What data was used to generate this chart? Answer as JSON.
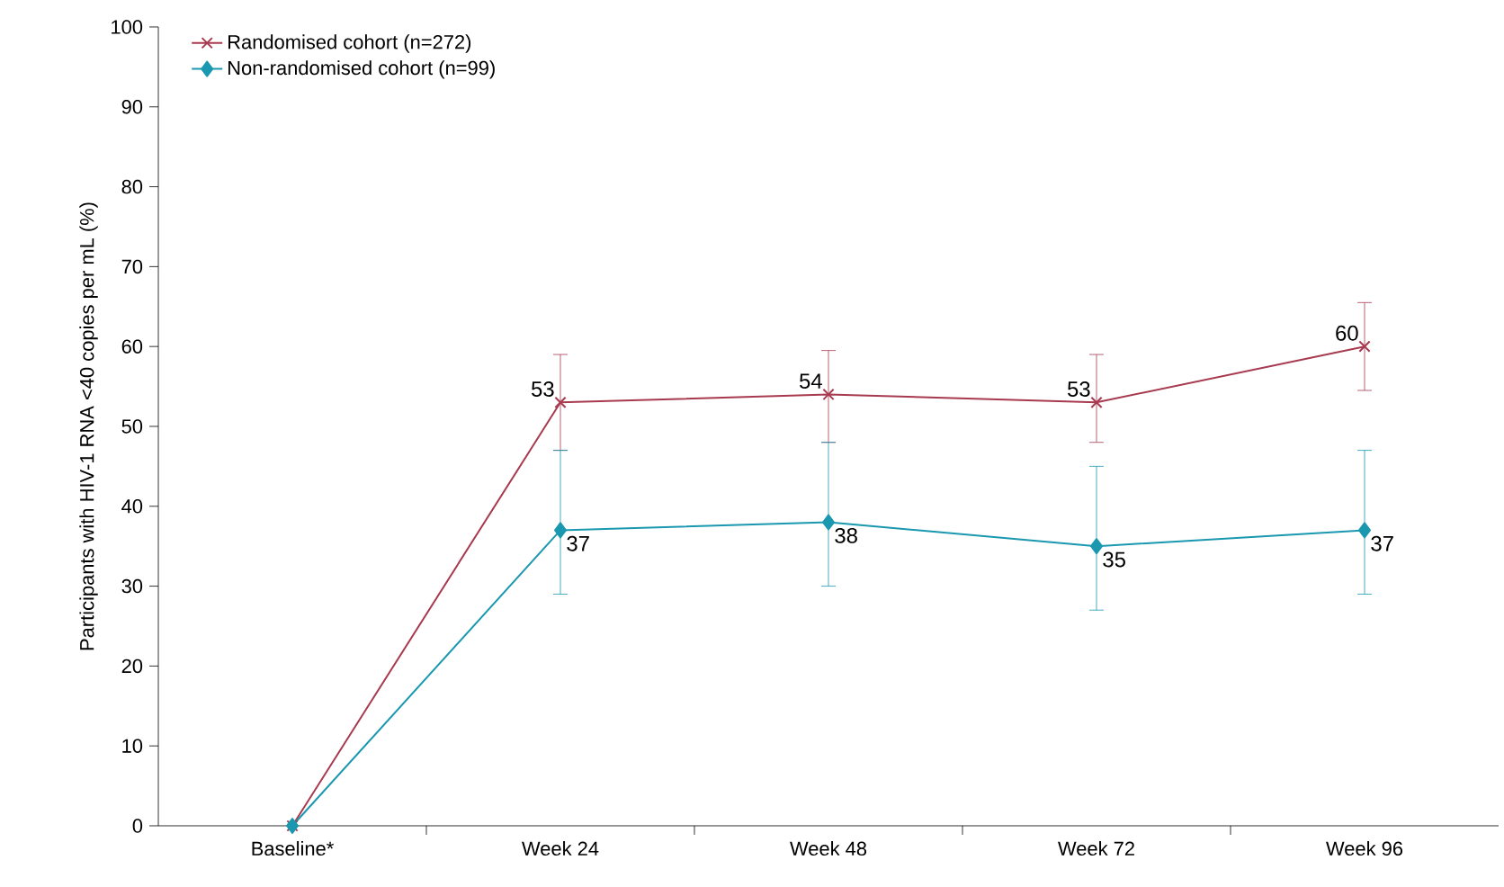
{
  "chart_data": {
    "type": "line",
    "ylabel": "Participants with HIV-1 RNA <40 copies per mL (%)",
    "categories": [
      "Baseline*",
      "Week 24",
      "Week 48",
      "Week 72",
      "Week 96"
    ],
    "series": [
      {
        "name": "Randomised cohort (n=272)",
        "color": "#a83a50",
        "marker": "cross",
        "values": [
          0,
          53,
          54,
          53,
          60
        ],
        "errors": [
          null,
          [
            47,
            59
          ],
          [
            48,
            59.5
          ],
          [
            48,
            59
          ],
          [
            54.5,
            65.5
          ]
        ],
        "value_labels": [
          null,
          "53",
          "54",
          "53",
          "60"
        ]
      },
      {
        "name": "Non-randomised cohort (n=99)",
        "color": "#1a98b0",
        "marker": "diamond",
        "values": [
          0,
          37,
          38,
          35,
          37
        ],
        "errors": [
          null,
          [
            29,
            47
          ],
          [
            30,
            48
          ],
          [
            27,
            45
          ],
          [
            29,
            47
          ]
        ],
        "value_labels": [
          null,
          "37",
          "38",
          "35",
          "37"
        ]
      }
    ],
    "ylim": [
      0,
      100
    ],
    "yticks": [
      0,
      10,
      20,
      30,
      40,
      50,
      60,
      70,
      80,
      90,
      100
    ],
    "grid": false,
    "legend": "top left",
    "line_style": "solid"
  }
}
